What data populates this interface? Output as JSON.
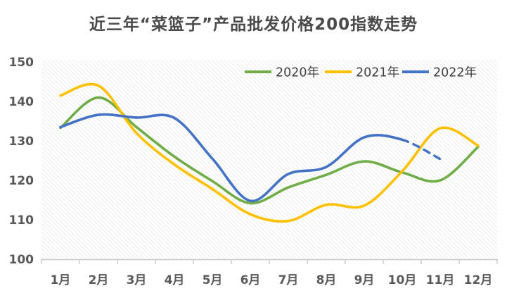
{
  "chart_data": {
    "type": "line",
    "title": "近三年“菜篮子”产品批发价格200指数走势",
    "categories": [
      "1月",
      "2月",
      "3月",
      "4月",
      "5月",
      "6月",
      "7月",
      "8月",
      "9月",
      "10月",
      "11月",
      "12月"
    ],
    "y_ticks": [
      150,
      140,
      130,
      120,
      110,
      100
    ],
    "ylim": [
      100,
      150
    ],
    "grid": false,
    "plot_background": "light-diagonal-hatch",
    "legend_position": "top-right-inside",
    "series": [
      {
        "name": "2020年",
        "color": "#70AD47",
        "line_style": "solid",
        "values": [
          133.3,
          141.0,
          133.5,
          126.0,
          119.8,
          114.2,
          118.2,
          121.4,
          124.8,
          122.0,
          120.0,
          128.5
        ]
      },
      {
        "name": "2021年",
        "color": "#FFC000",
        "line_style": "solid",
        "values": [
          141.5,
          144.0,
          132.0,
          124.0,
          117.8,
          111.4,
          109.7,
          113.8,
          113.6,
          122.3,
          133.2,
          128.8
        ]
      },
      {
        "name": "2022年",
        "color": "#4472C4",
        "line_style": "solid, final segment (10月→11月) dashed",
        "values": [
          133.5,
          136.6,
          135.9,
          135.8,
          125.5,
          114.8,
          121.6,
          123.4,
          130.9,
          130.3,
          125.4
        ]
      }
    ],
    "axis_color": "#c9c9c9",
    "tick_label_color": "#595959",
    "title_color": "#4a4a4a"
  }
}
